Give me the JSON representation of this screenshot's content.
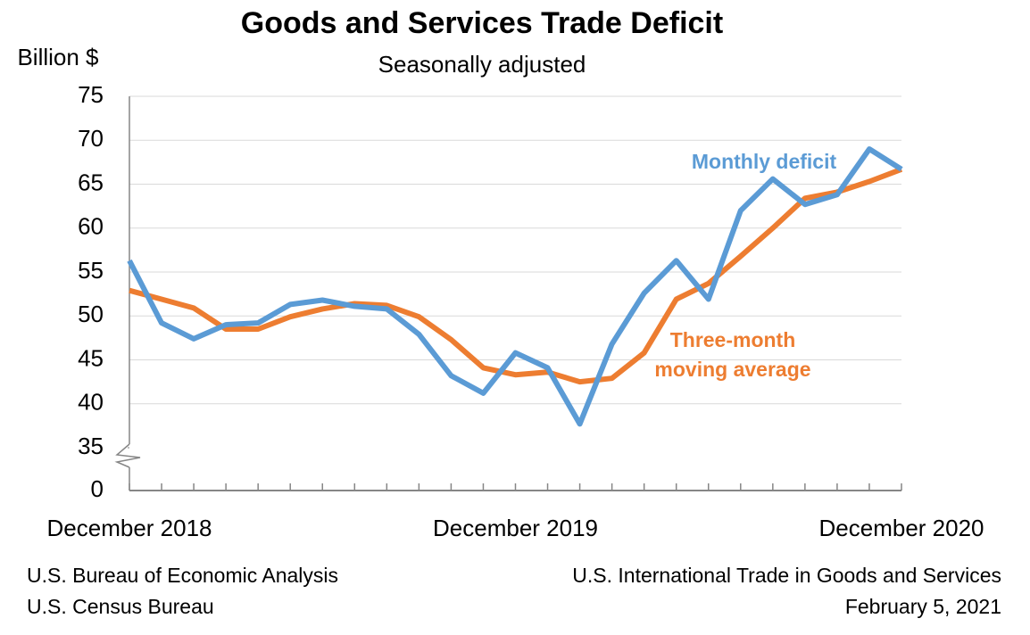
{
  "chart_data": {
    "type": "line",
    "title": "Goods and Services Trade Deficit",
    "subtitle": "Seasonally adjusted",
    "y_label": "Billion $",
    "categories": [
      "December 2018",
      null,
      null,
      null,
      null,
      null,
      null,
      null,
      null,
      null,
      null,
      null,
      "December 2019",
      null,
      null,
      null,
      null,
      null,
      null,
      null,
      null,
      null,
      null,
      null,
      "December 2020"
    ],
    "series": [
      {
        "name": "Monthly deficit",
        "color": "#5b9bd5",
        "values": [
          56.3,
          49.2,
          47.4,
          49.0,
          49.2,
          51.3,
          51.8,
          51.1,
          50.8,
          47.9,
          43.2,
          41.2,
          45.8,
          44.1,
          37.7,
          46.8,
          52.6,
          56.3,
          51.9,
          62.0,
          65.6,
          62.7,
          63.8,
          69.0,
          66.7
        ]
      },
      {
        "name": "Three-month moving average",
        "color": "#ed7d31",
        "values": [
          52.9,
          51.9,
          50.9,
          48.5,
          48.5,
          49.9,
          50.8,
          51.4,
          51.2,
          49.9,
          47.3,
          44.1,
          43.3,
          43.6,
          42.5,
          42.9,
          45.8,
          51.9,
          53.7,
          56.8,
          60.0,
          63.4,
          64.1,
          65.3,
          66.7
        ]
      }
    ],
    "ylim": [
      0,
      75
    ],
    "axis_break": [
      0,
      35
    ],
    "yticks": [
      0,
      35,
      40,
      45,
      50,
      55,
      60,
      65,
      70,
      75
    ],
    "grid": true,
    "source": [
      "U.S. Bureau of Economic Analysis",
      "U.S. Census Bureau"
    ],
    "release": [
      "U.S. International Trade in Goods and Services",
      "February 5, 2021"
    ]
  }
}
